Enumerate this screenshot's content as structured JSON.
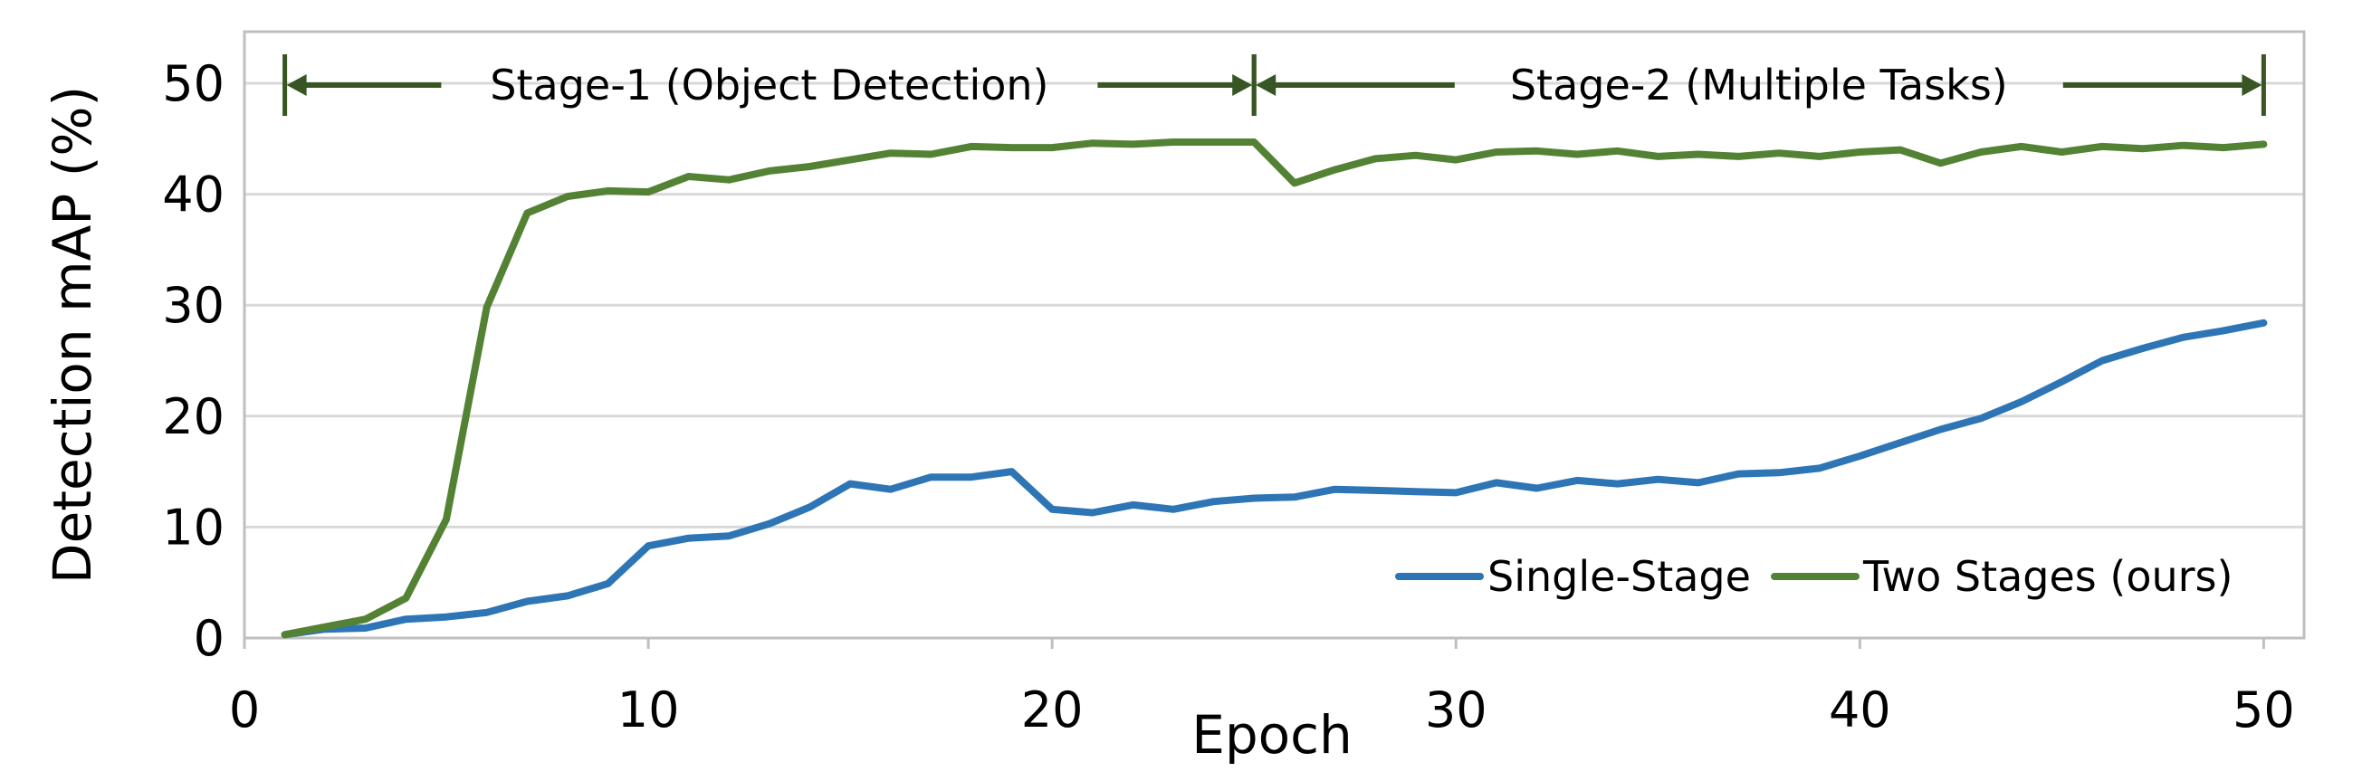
{
  "chart_data": {
    "type": "line",
    "xlabel": "Epoch",
    "ylabel": "Detection mAP (%)",
    "xlim": [
      0,
      51
    ],
    "ylim": [
      0,
      50
    ],
    "x_ticks": [
      0,
      10,
      20,
      30,
      40,
      50
    ],
    "y_ticks": [
      0,
      10,
      20,
      30,
      40,
      50
    ],
    "grid": "horizontal",
    "legend_position": "bottom-right",
    "colors": {
      "Single-Stage": "#2e75b6",
      "Two Stages (ours)": "#548235",
      "annotation": "#375623",
      "grid": "#d9d9d9",
      "axis": "#bfbfbf"
    },
    "x": [
      1,
      2,
      3,
      4,
      5,
      6,
      7,
      8,
      9,
      10,
      11,
      12,
      13,
      14,
      15,
      16,
      17,
      18,
      19,
      20,
      21,
      22,
      23,
      24,
      25,
      26,
      27,
      28,
      29,
      30,
      31,
      32,
      33,
      34,
      35,
      36,
      37,
      38,
      39,
      40,
      41,
      42,
      43,
      44,
      45,
      46,
      47,
      48,
      49,
      50
    ],
    "series": [
      {
        "name": "Single-Stage",
        "values": [
          0.3,
          0.8,
          0.9,
          1.7,
          1.9,
          2.3,
          3.3,
          3.8,
          4.9,
          8.3,
          9.0,
          9.2,
          10.3,
          11.8,
          13.9,
          13.4,
          14.5,
          14.5,
          15.0,
          11.6,
          11.3,
          12.0,
          11.6,
          12.3,
          12.6,
          12.7,
          13.4,
          13.3,
          13.2,
          13.1,
          14.0,
          13.5,
          14.2,
          13.9,
          14.3,
          14.0,
          14.8,
          14.9,
          15.3,
          16.4,
          17.6,
          18.8,
          19.8,
          21.3,
          23.1,
          25.0,
          26.1,
          27.1,
          27.7,
          28.4
        ]
      },
      {
        "name": "Two Stages (ours)",
        "values": [
          0.3,
          1.0,
          1.7,
          3.6,
          10.7,
          29.8,
          38.3,
          39.8,
          40.3,
          40.2,
          41.6,
          41.3,
          42.1,
          42.5,
          43.1,
          43.7,
          43.6,
          44.3,
          44.2,
          44.2,
          44.6,
          44.5,
          44.7,
          44.7,
          44.7,
          41.0,
          42.2,
          43.2,
          43.5,
          43.1,
          43.8,
          43.9,
          43.6,
          43.9,
          43.4,
          43.6,
          43.4,
          43.7,
          43.4,
          43.8,
          44.0,
          42.8,
          43.8,
          44.3,
          43.8,
          44.3,
          44.1,
          44.4,
          44.2,
          44.5
        ]
      }
    ],
    "annotations": [
      {
        "label": "Stage-1 (Object Detection)",
        "x_start": 1,
        "x_end": 25,
        "y": 50
      },
      {
        "label": "Stage-2 (Multiple Tasks)",
        "x_start": 25,
        "x_end": 50,
        "y": 50
      }
    ]
  }
}
